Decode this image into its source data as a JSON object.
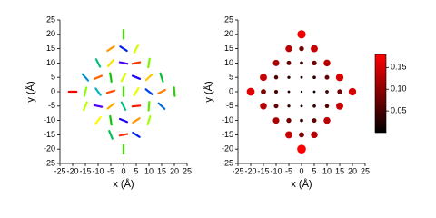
{
  "chart_data": [
    {
      "type": "vector",
      "xlabel": "x (Å)",
      "ylabel": "y (Å)",
      "xlim": [
        -25,
        25
      ],
      "ylim": [
        -25,
        25
      ],
      "xticks": [
        -25,
        -20,
        -15,
        -10,
        -5,
        0,
        5,
        10,
        15,
        20,
        25
      ],
      "yticks": [
        -25,
        -20,
        -15,
        -10,
        -5,
        0,
        5,
        10,
        15,
        20,
        25
      ],
      "segment_length": 3,
      "colormap": [
        "#ff0000",
        "#ff8000",
        "#ffff00",
        "#80ff00",
        "#00c000",
        "#00c0c0",
        "#0000ff",
        "#8000ff"
      ],
      "x": [
        0,
        -5,
        0,
        5,
        -10,
        -5,
        0,
        5,
        10,
        -15,
        -10,
        -5,
        0,
        5,
        10,
        15,
        -20,
        -15,
        -10,
        -5,
        0,
        5,
        10,
        15,
        20,
        -15,
        -10,
        -5,
        0,
        5,
        10,
        15,
        -10,
        -5,
        0,
        5,
        10,
        -5,
        0,
        5,
        0
      ],
      "y": [
        20,
        15,
        15,
        15,
        10,
        10,
        10,
        10,
        10,
        5,
        5,
        5,
        5,
        5,
        5,
        5,
        0,
        0,
        0,
        0,
        0,
        0,
        0,
        0,
        0,
        -5,
        -5,
        -5,
        -5,
        -5,
        -5,
        -5,
        -10,
        -10,
        -10,
        -10,
        -10,
        -15,
        -15,
        -15,
        -20
      ],
      "angles": [
        90,
        30,
        150,
        60,
        120,
        45,
        170,
        10,
        80,
        135,
        20,
        100,
        60,
        160,
        40,
        110,
        0,
        75,
        130,
        15,
        90,
        55,
        145,
        25,
        95,
        65,
        170,
        35,
        120,
        5,
        85,
        140,
        50,
        100,
        160,
        30,
        70,
        115,
        10,
        150,
        90
      ]
    },
    {
      "type": "scatter",
      "xlabel": "x (Å)",
      "ylabel": "y (Å)",
      "xlim": [
        -25,
        25
      ],
      "ylim": [
        -25,
        25
      ],
      "xticks": [
        -25,
        -20,
        -15,
        -10,
        -5,
        0,
        5,
        10,
        15,
        20,
        25
      ],
      "yticks": [
        -25,
        -20,
        -15,
        -10,
        -5,
        0,
        5,
        10,
        15,
        20,
        25
      ],
      "colormap": [
        "#000000",
        "#800000",
        "#ff0000"
      ],
      "clim": [
        0,
        0.18
      ],
      "cticks": [
        0.05,
        {
          "value": 0.1,
          "label": "0.10"
        },
        0.15
      ],
      "x": [
        0,
        -5,
        0,
        5,
        -10,
        -5,
        0,
        5,
        10,
        -15,
        -10,
        -5,
        0,
        5,
        10,
        15,
        -20,
        -15,
        -10,
        -5,
        0,
        5,
        10,
        15,
        20,
        -15,
        -10,
        -5,
        0,
        5,
        10,
        15,
        -10,
        -5,
        0,
        5,
        10,
        -5,
        0,
        5,
        0
      ],
      "y": [
        20,
        15,
        15,
        15,
        10,
        10,
        10,
        10,
        10,
        5,
        5,
        5,
        5,
        5,
        5,
        5,
        0,
        0,
        0,
        0,
        0,
        0,
        0,
        0,
        0,
        -5,
        -5,
        -5,
        -5,
        -5,
        -5,
        -5,
        -10,
        -10,
        -10,
        -10,
        -10,
        -15,
        -15,
        -15,
        -20
      ],
      "values": [
        0.17,
        0.13,
        0.08,
        0.14,
        0.12,
        0.07,
        0.04,
        0.08,
        0.13,
        0.14,
        0.06,
        0.03,
        0.02,
        0.04,
        0.07,
        0.15,
        0.16,
        0.09,
        0.05,
        0.02,
        0.01,
        0.02,
        0.04,
        0.08,
        0.15,
        0.13,
        0.07,
        0.03,
        0.02,
        0.04,
        0.06,
        0.14,
        0.12,
        0.08,
        0.04,
        0.07,
        0.13,
        0.14,
        0.09,
        0.13,
        0.18
      ]
    }
  ]
}
